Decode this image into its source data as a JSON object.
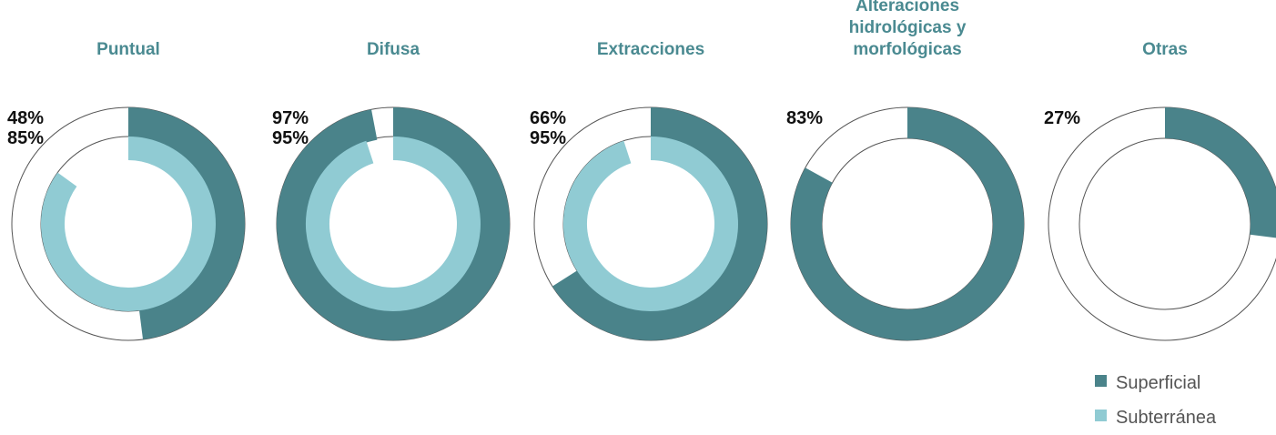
{
  "colors": {
    "superficial": "#4a838a",
    "subterranea": "#90cbd3",
    "title": "#4a8a91",
    "guide": "#555555"
  },
  "chart_data": {
    "type": "donut",
    "title": "",
    "categories": [
      [
        "Puntual"
      ],
      [
        "Difusa"
      ],
      [
        "Extracciones"
      ],
      [
        "Alteraciones",
        "hidrológicas y",
        "morfológicas"
      ],
      [
        "Otras"
      ]
    ],
    "series": [
      {
        "name": "Superficial",
        "values": [
          48,
          97,
          66,
          83,
          27
        ],
        "labels": [
          "48%",
          "97%",
          "66%",
          "83%",
          "27%"
        ]
      },
      {
        "name": "Subterránea",
        "values": [
          85,
          95,
          95,
          null,
          null
        ],
        "labels": [
          "85%",
          "95%",
          "95%",
          "",
          ""
        ]
      }
    ],
    "unit": "%",
    "legend_position": "bottom-right"
  }
}
